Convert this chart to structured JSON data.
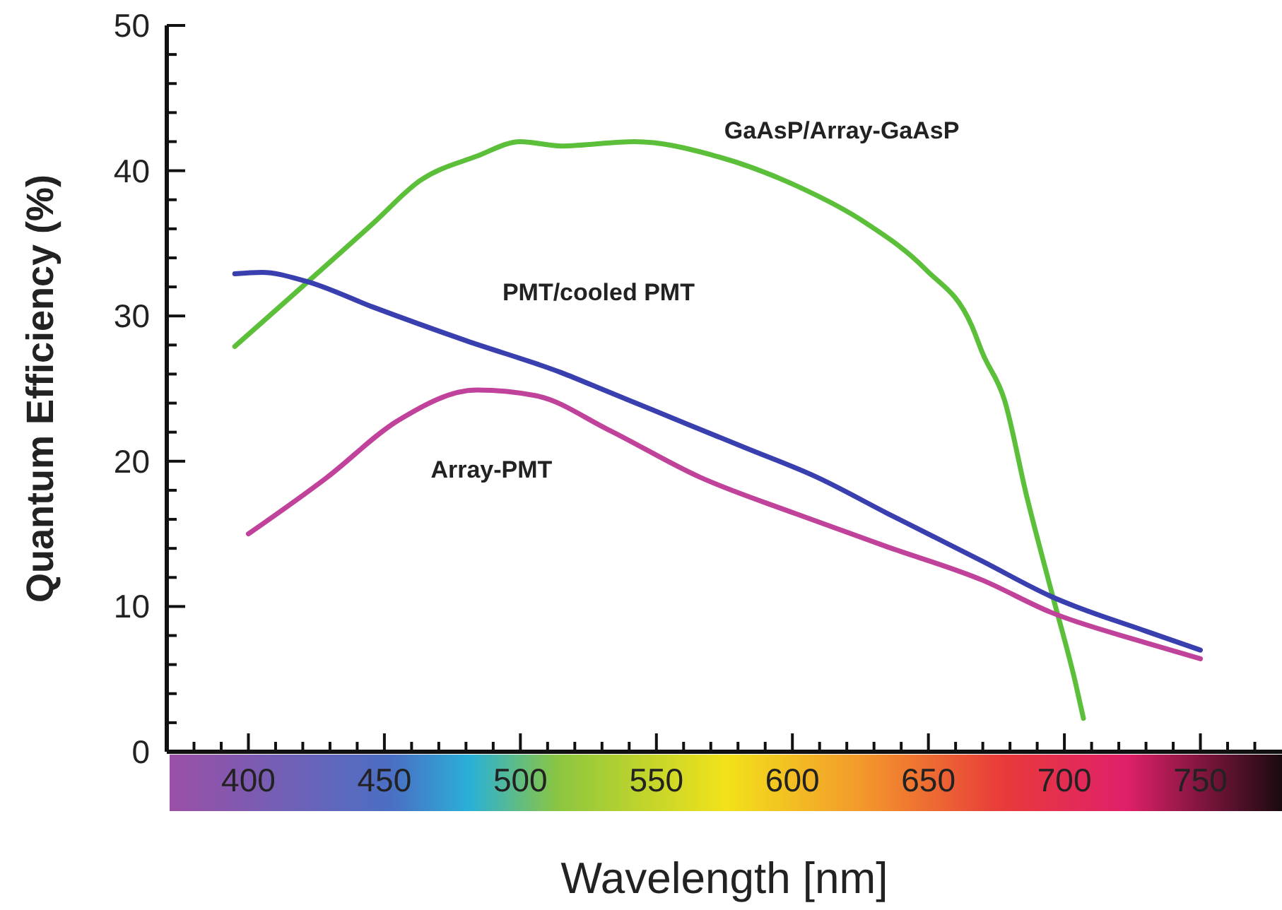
{
  "chart_data": {
    "type": "line",
    "xlabel": "Wavelength [nm]",
    "ylabel": "Quantum Efficiency (%)",
    "xlim": [
      370,
      780
    ],
    "ylim": [
      0,
      50
    ],
    "xticks": [
      {
        "value": 380,
        "label": null
      },
      {
        "value": 390,
        "label": null
      },
      400,
      {
        "value": 410,
        "label": null
      },
      {
        "value": 420,
        "label": null
      },
      {
        "value": 430,
        "label": null
      },
      {
        "value": 440,
        "label": null
      },
      450,
      {
        "value": 460,
        "label": null
      },
      {
        "value": 470,
        "label": null
      },
      {
        "value": 480,
        "label": null
      },
      {
        "value": 490,
        "label": null
      },
      500,
      {
        "value": 510,
        "label": null
      },
      {
        "value": 520,
        "label": null
      },
      {
        "value": 530,
        "label": null
      },
      {
        "value": 540,
        "label": null
      },
      550,
      {
        "value": 560,
        "label": null
      },
      {
        "value": 570,
        "label": null
      },
      {
        "value": 580,
        "label": null
      },
      {
        "value": 590,
        "label": null
      },
      600,
      {
        "value": 610,
        "label": null
      },
      {
        "value": 620,
        "label": null
      },
      {
        "value": 630,
        "label": null
      },
      {
        "value": 640,
        "label": null
      },
      650,
      {
        "value": 660,
        "label": null
      },
      {
        "value": 670,
        "label": null
      },
      {
        "value": 680,
        "label": null
      },
      {
        "value": 690,
        "label": null
      },
      700,
      {
        "value": 710,
        "label": null
      },
      {
        "value": 720,
        "label": null
      },
      {
        "value": 730,
        "label": null
      },
      {
        "value": 740,
        "label": null
      },
      750,
      {
        "value": 760,
        "label": null
      },
      {
        "value": 770,
        "label": null
      }
    ],
    "yticks": [
      0,
      {
        "value": 2,
        "label": null
      },
      {
        "value": 4,
        "label": null
      },
      {
        "value": 6,
        "label": null
      },
      {
        "value": 8,
        "label": null
      },
      10,
      {
        "value": 12,
        "label": null
      },
      {
        "value": 14,
        "label": null
      },
      {
        "value": 16,
        "label": null
      },
      {
        "value": 18,
        "label": null
      },
      20,
      {
        "value": 22,
        "label": null
      },
      {
        "value": 24,
        "label": null
      },
      {
        "value": 26,
        "label": null
      },
      {
        "value": 28,
        "label": null
      },
      30,
      {
        "value": 32,
        "label": null
      },
      {
        "value": 34,
        "label": null
      },
      {
        "value": 36,
        "label": null
      },
      {
        "value": 38,
        "label": null
      },
      40,
      {
        "value": 42,
        "label": null
      },
      {
        "value": 44,
        "label": null
      },
      {
        "value": 46,
        "label": null
      },
      {
        "value": 48,
        "label": null
      },
      50
    ],
    "series": [
      {
        "name": "GaAsP/Array-GaAsP",
        "color": "#5cbf3a",
        "x": [
          395,
          446,
          463,
          484,
          500,
          515,
          542,
          572,
          601,
          627,
          649,
          666,
          670,
          678,
          686,
          695,
          704,
          707
        ],
        "values": [
          27.9,
          36.4,
          39.3,
          41,
          42,
          41.7,
          42,
          41,
          39,
          36.4,
          33.2,
          29.3,
          27.4,
          24.2,
          17.7,
          11.2,
          4.8,
          2.3
        ]
      },
      {
        "name": "PMT/cooled PMT",
        "color": "#3a3fb0",
        "x": [
          395,
          405,
          421,
          446,
          480,
          515,
          532,
          549,
          583,
          609,
          635,
          670,
          695,
          730,
          750
        ],
        "values": [
          32.9,
          33,
          32.4,
          30.6,
          28.3,
          26.1,
          24.8,
          23.5,
          20.9,
          18.9,
          16.4,
          13.1,
          10.7,
          8.3,
          7.0
        ]
      },
      {
        "name": "Array-PMT",
        "color": "#c0429a",
        "x": [
          400,
          429,
          455,
          484,
          506,
          532,
          566,
          601,
          635,
          670,
          695,
          730,
          750
        ],
        "values": [
          15.0,
          18.9,
          22.8,
          24.9,
          24.5,
          22.2,
          18.9,
          16.4,
          14.1,
          11.8,
          9.6,
          7.5,
          6.4
        ]
      }
    ]
  }
}
